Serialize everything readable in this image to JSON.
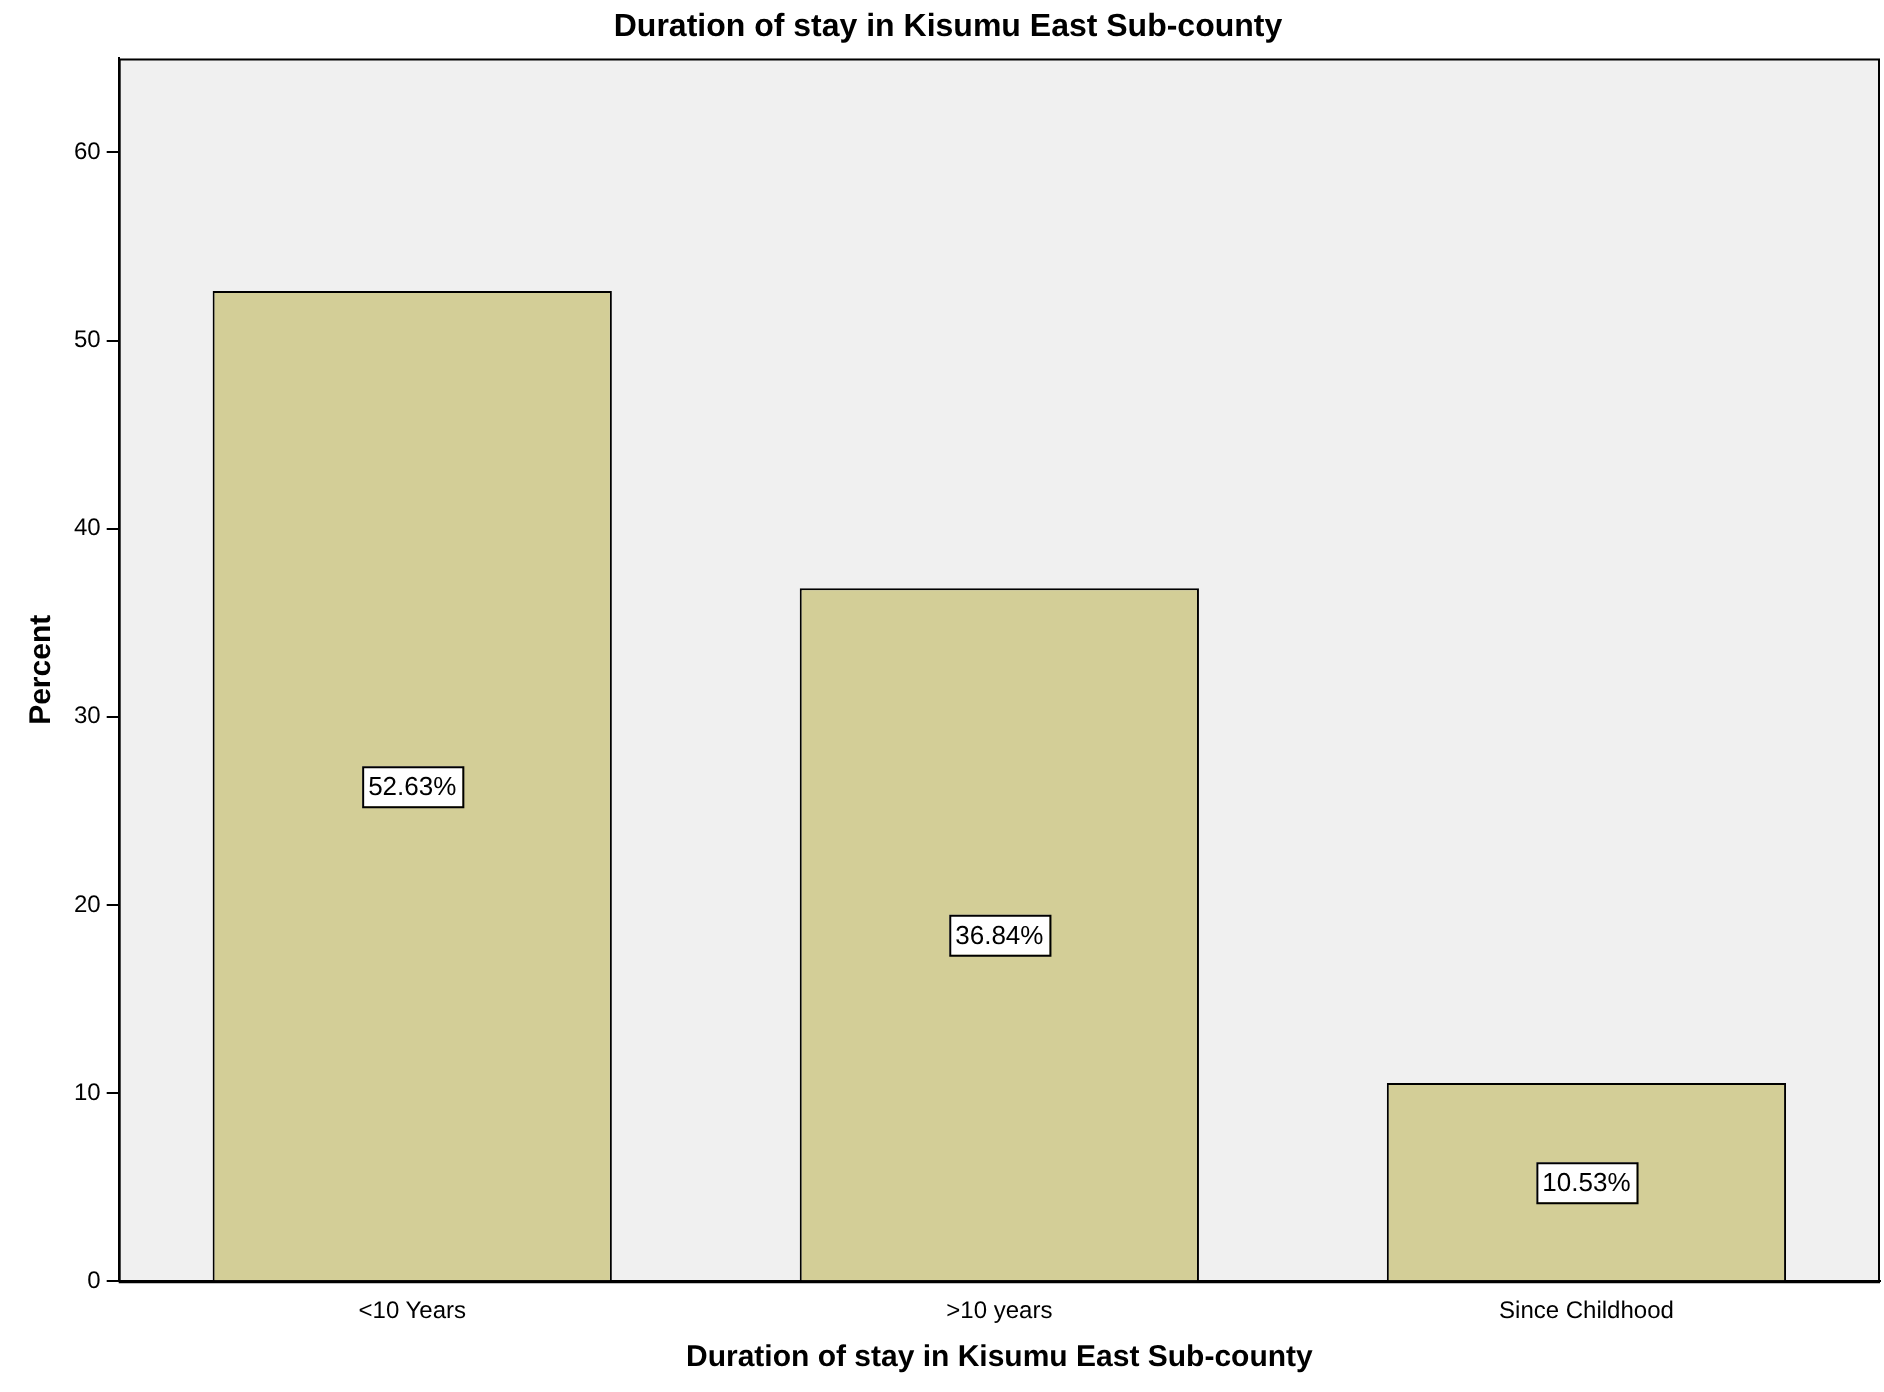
{
  "chart_data": {
    "type": "bar",
    "title": "Duration of stay in Kisumu East Sub-county",
    "xlabel": "Duration of stay in Kisumu East Sub-county",
    "ylabel": "Percent",
    "categories": [
      "<10 Years",
      ">10 years",
      "Since Childhood"
    ],
    "values": [
      52.63,
      36.84,
      10.53
    ],
    "value_labels": [
      "52.63%",
      "36.84%",
      "10.53%"
    ],
    "color": "#d3ce97",
    "ylim": [
      0,
      65
    ],
    "yticks": [
      0,
      10,
      20,
      30,
      40,
      50,
      60
    ],
    "grid": false,
    "legend": false
  }
}
